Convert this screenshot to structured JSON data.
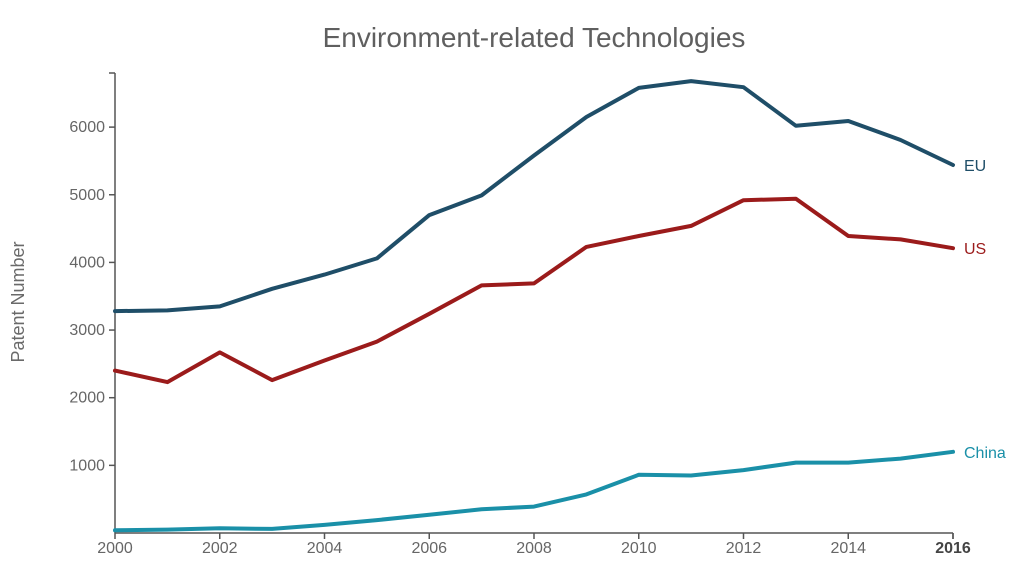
{
  "chart_data": {
    "type": "line",
    "title": "Environment-related Technologies",
    "ylabel": "Patent Number",
    "xlabel": "",
    "x": [
      2000,
      2001,
      2002,
      2003,
      2004,
      2005,
      2006,
      2007,
      2008,
      2009,
      2010,
      2011,
      2012,
      2013,
      2014,
      2015,
      2016
    ],
    "xlim": [
      2000,
      2016
    ],
    "ylim": [
      0,
      6800
    ],
    "x_ticks": [
      "2000",
      "2002",
      "2004",
      "2006",
      "2008",
      "2010",
      "2012",
      "2014",
      "2016"
    ],
    "y_ticks": [
      "1000",
      "2000",
      "3000",
      "4000",
      "5000",
      "6000"
    ],
    "grid": false,
    "legend": "direct labels at line ends",
    "series": [
      {
        "name": "EU",
        "color": "#1f4e68",
        "values": [
          3280,
          3290,
          3350,
          3610,
          3820,
          4060,
          4700,
          4990,
          5580,
          6150,
          6580,
          6680,
          6590,
          6020,
          6090,
          5810,
          5440
        ]
      },
      {
        "name": "US",
        "color": "#9b1b1b",
        "values": [
          2400,
          2230,
          2670,
          2260,
          2550,
          2830,
          3240,
          3660,
          3690,
          4230,
          4390,
          4540,
          4920,
          4940,
          4390,
          4340,
          4210
        ]
      },
      {
        "name": "China",
        "color": "#1a90a8",
        "values": [
          40,
          50,
          70,
          60,
          120,
          190,
          270,
          350,
          390,
          570,
          860,
          850,
          930,
          1040,
          1040,
          1100,
          1200
        ]
      }
    ]
  }
}
